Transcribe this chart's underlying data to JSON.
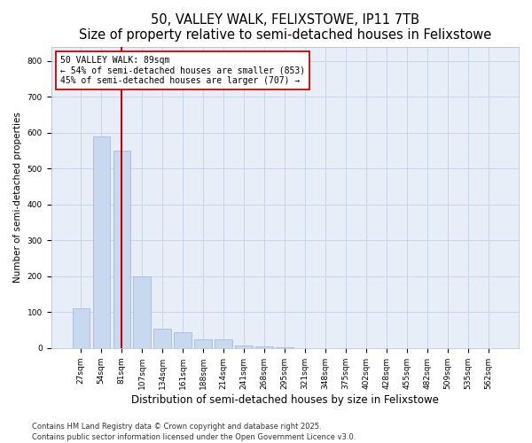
{
  "title": "50, VALLEY WALK, FELIXSTOWE, IP11 7TB",
  "subtitle": "Size of property relative to semi-detached houses in Felixstowe",
  "xlabel": "Distribution of semi-detached houses by size in Felixstowe",
  "ylabel": "Number of semi-detached properties",
  "categories": [
    "27sqm",
    "54sqm",
    "81sqm",
    "107sqm",
    "134sqm",
    "161sqm",
    "188sqm",
    "214sqm",
    "241sqm",
    "268sqm",
    "295sqm",
    "321sqm",
    "348sqm",
    "375sqm",
    "402sqm",
    "428sqm",
    "455sqm",
    "482sqm",
    "509sqm",
    "535sqm",
    "562sqm"
  ],
  "values": [
    110,
    590,
    550,
    200,
    55,
    45,
    25,
    25,
    8,
    5,
    2,
    0,
    0,
    0,
    0,
    0,
    0,
    0,
    0,
    0,
    0
  ],
  "bar_color": "#c8d8ee",
  "bar_edge_color": "#9ab4d4",
  "vline_x_index": 2,
  "vline_color": "#cc0000",
  "annotation_title": "50 VALLEY WALK: 89sqm",
  "annotation_line1": "← 54% of semi-detached houses are smaller (853)",
  "annotation_line2": "45% of semi-detached houses are larger (707) →",
  "annotation_box_color": "#ffffff",
  "annotation_box_edge": "#cc0000",
  "ylim": [
    0,
    840
  ],
  "yticks": [
    0,
    100,
    200,
    300,
    400,
    500,
    600,
    700,
    800
  ],
  "grid_color": "#c8d4e8",
  "fig_bg_color": "#ffffff",
  "plot_bg_color": "#e8eef8",
  "footer_line1": "Contains HM Land Registry data © Crown copyright and database right 2025.",
  "footer_line2": "Contains public sector information licensed under the Open Government Licence v3.0.",
  "title_fontsize": 10.5,
  "subtitle_fontsize": 9,
  "xlabel_fontsize": 8.5,
  "ylabel_fontsize": 7.5,
  "tick_fontsize": 6.5,
  "footer_fontsize": 6,
  "annot_fontsize": 7
}
